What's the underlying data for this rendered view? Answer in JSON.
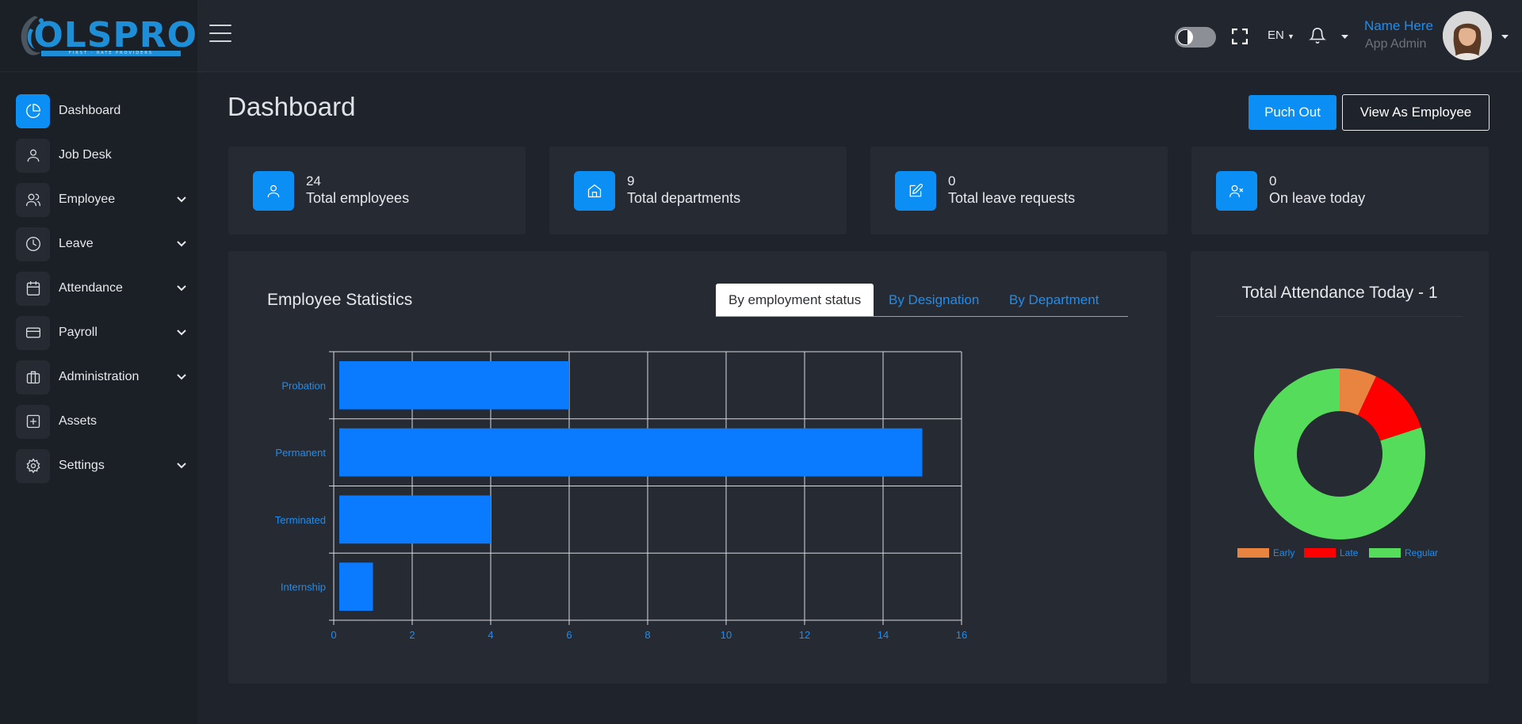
{
  "brand": {
    "logo_text": "OLSPRO",
    "tagline": "FIRST - RATE PROVIDERS"
  },
  "sidebar": {
    "items": [
      {
        "label": "Dashboard",
        "icon": "pie-chart-icon",
        "active": true,
        "expandable": false
      },
      {
        "label": "Job Desk",
        "icon": "user-icon",
        "active": false,
        "expandable": false
      },
      {
        "label": "Employee",
        "icon": "users-icon",
        "active": false,
        "expandable": true
      },
      {
        "label": "Leave",
        "icon": "clock-icon",
        "active": false,
        "expandable": true
      },
      {
        "label": "Attendance",
        "icon": "calendar-icon",
        "active": false,
        "expandable": true
      },
      {
        "label": "Payroll",
        "icon": "credit-card-icon",
        "active": false,
        "expandable": true
      },
      {
        "label": "Administration",
        "icon": "briefcase-icon",
        "active": false,
        "expandable": true
      },
      {
        "label": "Assets",
        "icon": "plus-square-icon",
        "active": false,
        "expandable": false
      },
      {
        "label": "Settings",
        "icon": "gear-icon",
        "active": false,
        "expandable": true
      }
    ]
  },
  "topbar": {
    "language": "EN",
    "user_name": "Name Here",
    "user_role": "App Admin"
  },
  "page": {
    "title": "Dashboard",
    "punch_out_label": "Puch Out",
    "view_as_employee_label": "View As Employee"
  },
  "stats": [
    {
      "value": "24",
      "label": "Total employees",
      "icon": "user-icon"
    },
    {
      "value": "9",
      "label": "Total departments",
      "icon": "home-icon"
    },
    {
      "value": "0",
      "label": "Total leave requests",
      "icon": "edit-icon"
    },
    {
      "value": "0",
      "label": "On leave today",
      "icon": "user-x-icon"
    }
  ],
  "employee_statistics": {
    "title": "Employee Statistics",
    "tabs": [
      "By employment status",
      "By Designation",
      "By Department"
    ],
    "active_tab": 0
  },
  "attendance": {
    "title": "Total Attendance Today - 1"
  },
  "colors": {
    "accent": "#0b8ff5",
    "bar": "#0a7bff",
    "early": "#e8843f",
    "late": "#ff0000",
    "regular": "#56dc5b"
  },
  "chart_data": [
    {
      "type": "bar",
      "orientation": "horizontal",
      "categories": [
        "Probation",
        "Permanent",
        "Terminated",
        "Internship"
      ],
      "values": [
        6,
        15,
        4,
        1
      ],
      "xlim": [
        0,
        16
      ],
      "xticks": [
        0,
        2,
        4,
        6,
        8,
        10,
        12,
        14,
        16
      ],
      "grid": true
    },
    {
      "type": "pie",
      "donut": true,
      "labels": [
        "Early",
        "Late",
        "Regular"
      ],
      "values": [
        7,
        13,
        80
      ],
      "legend": "bottom"
    }
  ]
}
